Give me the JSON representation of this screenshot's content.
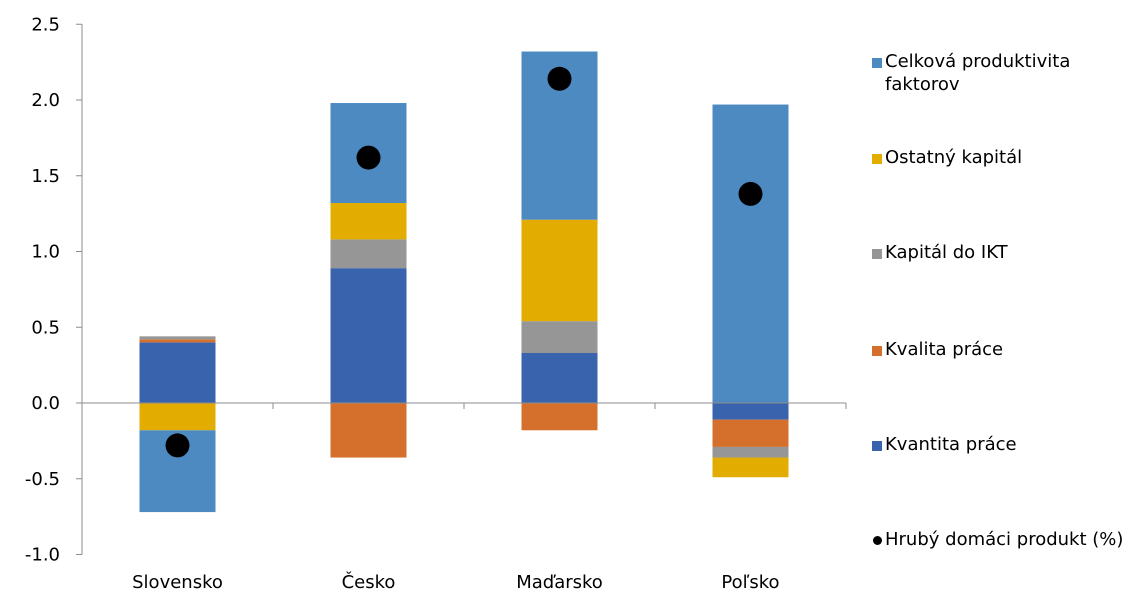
{
  "chart_data": {
    "type": "bar",
    "stacked": true,
    "categories": [
      "Slovensko",
      "Česko",
      "Maďarsko",
      "Poľsko"
    ],
    "ylim": [
      -1.0,
      2.5
    ],
    "yticks": [
      "-1.0",
      "-0.5",
      "0.0",
      "0.5",
      "1.0",
      "1.5",
      "2.0",
      "2.5"
    ],
    "series": [
      {
        "name": "Kvantita práce",
        "color": "#3a63ad",
        "values": [
          0.4,
          0.89,
          0.33,
          -0.11
        ]
      },
      {
        "name": "Kvalita práce",
        "color": "#d4702c",
        "values": [
          0.02,
          -0.36,
          -0.18,
          -0.18
        ]
      },
      {
        "name": "Kapitál do IKT",
        "color": "#969696",
        "values": [
          0.02,
          0.19,
          0.21,
          -0.07
        ]
      },
      {
        "name": "Ostatný kapitál",
        "color": "#e2ac00",
        "values": [
          -0.18,
          0.24,
          0.67,
          -0.13
        ]
      },
      {
        "name": "Celková produktivita faktorov",
        "color": "#4e8ac2",
        "values": [
          -0.54,
          0.66,
          1.11,
          1.97
        ]
      }
    ],
    "markers": {
      "name": "Hrubý domáci produkt (%)",
      "color": "#000000",
      "values": [
        -0.28,
        1.62,
        2.14,
        1.38
      ]
    },
    "legend_position": "right",
    "legend_order": [
      "Celková produktivita faktorov",
      "Ostatný kapitál",
      "Kapitál do IKT",
      "Kvalita práce",
      "Kvantita práce",
      "Hrubý domáci produkt (%)"
    ]
  }
}
